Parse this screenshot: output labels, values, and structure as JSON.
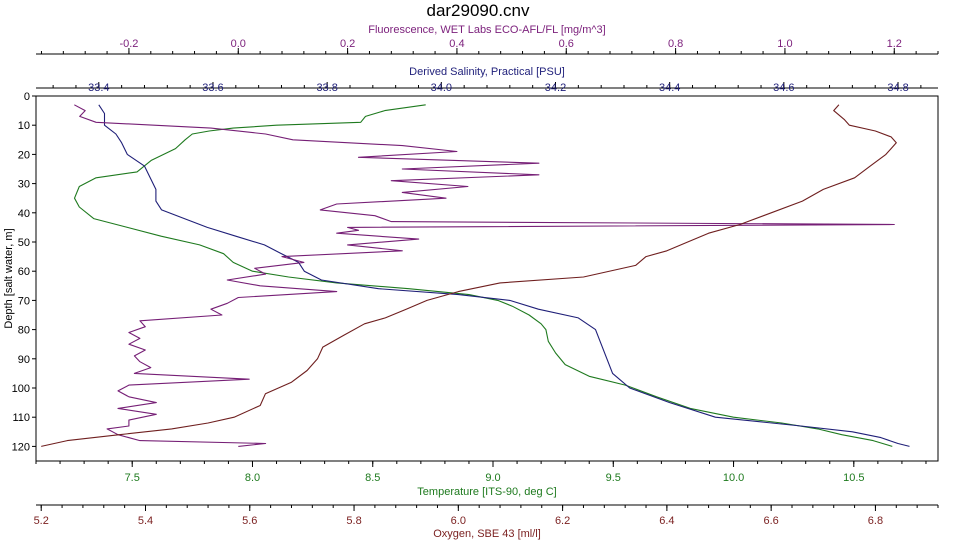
{
  "chart_data": {
    "type": "line",
    "title": "dar29090.cnv",
    "y_axis": {
      "label": "Depth [salt water, m]",
      "range": [
        0,
        125
      ],
      "reversed": true,
      "ticks": [
        0,
        10,
        20,
        30,
        40,
        50,
        60,
        70,
        80,
        90,
        100,
        110,
        120
      ],
      "tick_labels": [
        "0",
        "10",
        "20",
        "30",
        "40",
        "50",
        "60",
        "70",
        "80",
        "90",
        "100",
        "110",
        "120"
      ]
    },
    "x_axes": [
      {
        "key": "fluorescence",
        "label": "Fluorescence, WET Labs ECO-AFL/FL [mg/m^3]",
        "position": "top-outer",
        "color": "#7b1f7b",
        "range": [
          -0.37,
          1.28
        ],
        "ticks": [
          -0.2,
          0.0,
          0.2,
          0.4,
          0.6,
          0.8,
          1.0,
          1.2
        ],
        "tick_labels": [
          "-0.2",
          "0.0",
          "0.2",
          "0.4",
          "0.6",
          "0.8",
          "1.0",
          "1.2"
        ]
      },
      {
        "key": "salinity",
        "label": "Derived Salinity, Practical [PSU]",
        "position": "top-inner",
        "color": "#1f1f7a",
        "range": [
          33.29,
          34.87
        ],
        "ticks": [
          33.4,
          33.6,
          33.8,
          34.0,
          34.2,
          34.4,
          34.6,
          34.8
        ],
        "tick_labels": [
          "33.4",
          "33.6",
          "33.8",
          "34.0",
          "34.2",
          "34.4",
          "34.6",
          "34.8"
        ]
      },
      {
        "key": "temperature",
        "label": "Temperature [ITS-90, deg C]",
        "position": "bottom-inner",
        "color": "#1e7a1e",
        "range": [
          7.1,
          10.85
        ],
        "ticks": [
          7.5,
          8.0,
          8.5,
          9.0,
          9.5,
          10.0,
          10.5
        ],
        "tick_labels": [
          "7.5",
          "8.0",
          "8.5",
          "9.0",
          "9.5",
          "10.0",
          "10.5"
        ]
      },
      {
        "key": "oxygen",
        "label": "Oxygen, SBE 43 [ml/l]",
        "position": "bottom-outer",
        "color": "#7a1f1f",
        "range": [
          5.19,
          6.92
        ],
        "ticks": [
          5.2,
          5.4,
          5.6,
          5.8,
          6.0,
          6.2,
          6.4,
          6.6,
          6.8
        ],
        "tick_labels": [
          "5.2",
          "5.4",
          "5.6",
          "5.8",
          "6.0",
          "6.2",
          "6.4",
          "6.6",
          "6.8"
        ]
      }
    ],
    "series": [
      {
        "axis": "temperature",
        "color": "#1f7a1f",
        "depth": [
          3,
          5,
          7,
          9,
          10,
          11,
          12,
          13,
          15,
          18,
          22,
          26,
          28,
          31,
          35,
          38,
          42,
          45,
          48,
          51,
          54,
          57,
          60,
          62,
          64,
          66,
          68,
          70,
          72,
          75,
          78,
          80,
          84,
          88,
          92,
          96,
          99,
          103,
          107,
          110,
          112,
          114,
          116,
          118,
          119,
          120
        ],
        "values": [
          8.72,
          8.55,
          8.47,
          8.45,
          8.1,
          7.92,
          7.82,
          7.75,
          7.72,
          7.68,
          7.58,
          7.52,
          7.35,
          7.28,
          7.26,
          7.28,
          7.34,
          7.48,
          7.62,
          7.78,
          7.88,
          7.92,
          8.0,
          8.15,
          8.35,
          8.65,
          8.9,
          9.02,
          9.08,
          9.15,
          9.2,
          9.22,
          9.23,
          9.26,
          9.3,
          9.4,
          9.55,
          9.68,
          9.82,
          10.0,
          10.2,
          10.35,
          10.45,
          10.58,
          10.62,
          10.66
        ]
      },
      {
        "axis": "salinity",
        "color": "#1f1f78",
        "depth": [
          3,
          6,
          10,
          13,
          16,
          20,
          24,
          28,
          32,
          36,
          39,
          42,
          45,
          48,
          51,
          54,
          57,
          60,
          63,
          66,
          68,
          70,
          73,
          76,
          80,
          85,
          90,
          95,
          100,
          105,
          110,
          113,
          115,
          117,
          119,
          120
        ],
        "values": [
          33.4,
          33.41,
          33.41,
          33.43,
          33.44,
          33.45,
          33.48,
          33.49,
          33.5,
          33.5,
          33.51,
          33.55,
          33.59,
          33.64,
          33.69,
          33.72,
          33.75,
          33.76,
          33.79,
          33.89,
          34.03,
          34.12,
          34.17,
          34.24,
          34.27,
          34.28,
          34.29,
          34.3,
          34.33,
          34.4,
          34.48,
          34.63,
          34.72,
          34.77,
          34.8,
          34.82
        ]
      },
      {
        "axis": "fluorescence",
        "color": "#761f76",
        "depth": [
          3,
          5,
          7,
          9,
          11,
          13,
          15,
          17,
          19,
          21,
          23,
          25,
          27,
          29,
          31,
          33,
          35,
          37,
          39,
          41,
          43,
          44,
          45,
          46,
          47,
          49,
          51,
          53,
          55,
          57,
          59,
          61,
          63,
          65,
          67,
          69,
          71,
          73,
          75,
          77,
          79,
          81,
          83,
          85,
          87,
          89,
          91,
          93,
          95,
          97,
          99,
          101,
          103,
          105,
          107,
          109,
          111,
          113,
          114,
          116,
          118,
          119,
          120
        ],
        "values": [
          -0.3,
          -0.28,
          -0.29,
          -0.26,
          -0.05,
          0.05,
          0.1,
          0.3,
          0.4,
          0.22,
          0.55,
          0.3,
          0.55,
          0.28,
          0.42,
          0.3,
          0.38,
          0.18,
          0.15,
          0.25,
          0.28,
          1.2,
          0.2,
          0.22,
          0.18,
          0.33,
          0.2,
          0.3,
          0.08,
          0.12,
          0.03,
          0.05,
          -0.02,
          0.04,
          0.18,
          0.0,
          -0.02,
          -0.05,
          -0.03,
          -0.18,
          -0.17,
          -0.2,
          -0.18,
          -0.2,
          -0.17,
          -0.19,
          -0.18,
          -0.16,
          -0.19,
          0.02,
          -0.2,
          -0.22,
          -0.2,
          -0.15,
          -0.22,
          -0.15,
          -0.2,
          -0.2,
          -0.24,
          -0.22,
          -0.18,
          0.05,
          0.0
        ]
      },
      {
        "axis": "oxygen",
        "color": "#6f1f1f",
        "depth": [
          3,
          5,
          8,
          10,
          12,
          14,
          16,
          18,
          20,
          24,
          28,
          32,
          36,
          40,
          44,
          47,
          50,
          53,
          55,
          58,
          62,
          64,
          67,
          70,
          73,
          76,
          78,
          82,
          86,
          90,
          94,
          98,
          102,
          106,
          110,
          112,
          114,
          116,
          118,
          120
        ],
        "values": [
          6.73,
          6.72,
          6.74,
          6.75,
          6.8,
          6.83,
          6.84,
          6.83,
          6.82,
          6.79,
          6.76,
          6.7,
          6.66,
          6.6,
          6.54,
          6.48,
          6.44,
          6.4,
          6.36,
          6.34,
          6.24,
          6.08,
          6.0,
          5.94,
          5.9,
          5.86,
          5.82,
          5.78,
          5.74,
          5.73,
          5.71,
          5.68,
          5.63,
          5.62,
          5.57,
          5.52,
          5.45,
          5.35,
          5.25,
          5.2
        ]
      }
    ]
  }
}
